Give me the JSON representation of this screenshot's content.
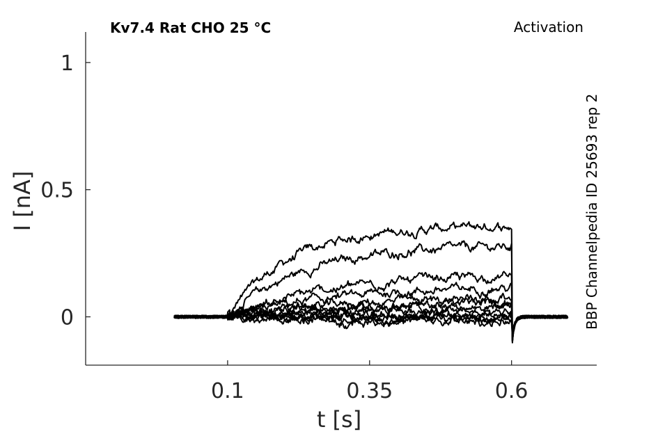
{
  "chart_data": {
    "type": "line",
    "title": "Kv7.4  Rat  CHO  25 °C",
    "subtitle": "Activation",
    "side_label": "BBP Channelpedia ID 25693 rep 2",
    "xlabel": "t [s]",
    "ylabel": "I [nA]",
    "xlim": [
      -0.15,
      0.75
    ],
    "ylim": [
      -0.19,
      1.12
    ],
    "xticks": [
      0.1,
      0.35,
      0.6
    ],
    "xtick_labels": [
      "0.1",
      "0.35",
      "0.6"
    ],
    "yticks": [
      0,
      0.5,
      1
    ],
    "ytick_labels": [
      "0",
      "0.5",
      "1"
    ],
    "grid": false,
    "pulse": {
      "start": 0.1,
      "end": 0.6,
      "baseline_start": 0.006,
      "tail_end": 0.7
    },
    "series": [
      {
        "plateau": 0.355,
        "tau": 0.11
      },
      {
        "plateau": 0.275,
        "tau": 0.13
      },
      {
        "plateau": 0.16,
        "tau": 0.18
      },
      {
        "plateau": 0.115,
        "tau": 0.2
      },
      {
        "plateau": 0.075,
        "tau": 0.22
      },
      {
        "plateau": 0.055,
        "tau": 0.2
      },
      {
        "plateau": 0.04,
        "tau": 0.2
      },
      {
        "plateau": 0.025,
        "tau": 0.2
      },
      {
        "plateau": 0.01,
        "tau": 0.2
      },
      {
        "plateau": 0.0,
        "tau": 0.2
      },
      {
        "plateau": -0.01,
        "tau": 0.2
      },
      {
        "plateau": -0.02,
        "tau": 0.2
      }
    ]
  }
}
